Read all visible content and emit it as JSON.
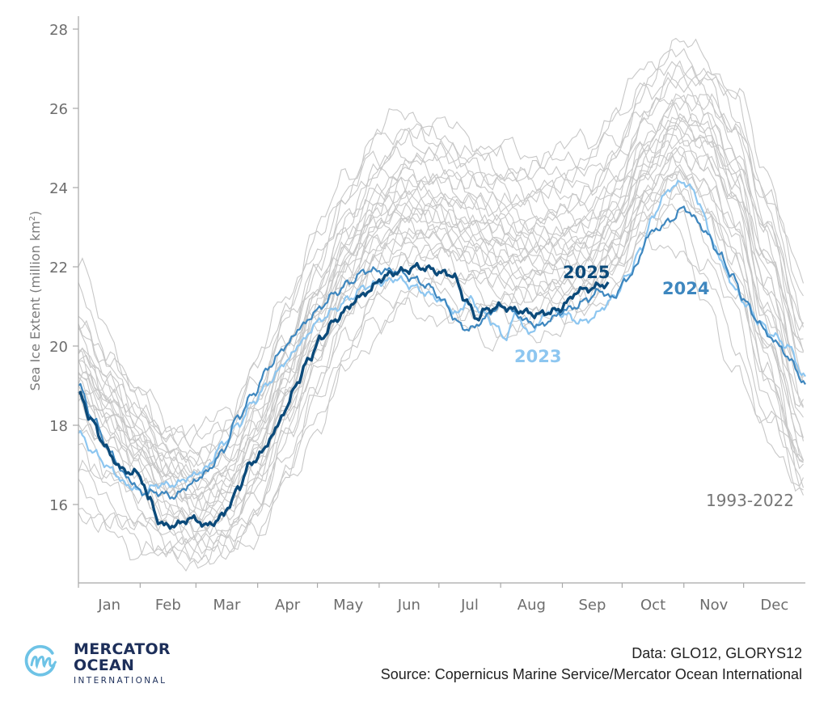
{
  "chart_data": {
    "type": "line",
    "title": "",
    "xlabel": "",
    "ylabel": "Sea Ice Extent (million km²)",
    "ylabel_main": "Sea Ice Extent (million km",
    "ylabel_sup": "2",
    "ylabel_end": ")",
    "xlim": [
      0,
      365
    ],
    "ylim": [
      14,
      28.3
    ],
    "yticks": [
      16,
      18,
      20,
      22,
      24,
      26,
      28
    ],
    "ytick_labels": [
      "16",
      "18",
      "20",
      "22",
      "24",
      "26",
      "28"
    ],
    "xtick_days": [
      0,
      31,
      59,
      90,
      120,
      151,
      181,
      212,
      243,
      273,
      304,
      334,
      365
    ],
    "month_labels": [
      "Jan",
      "Feb",
      "Mar",
      "Apr",
      "May",
      "Jun",
      "Jul",
      "Aug",
      "Sep",
      "Oct",
      "Nov",
      "Dec"
    ],
    "grid": false,
    "x_unit": "day of year",
    "background_range_label": "1993-2022",
    "background_color": "#c8c8c8",
    "background_years": 30,
    "background_x": [
      0,
      15,
      30,
      45,
      60,
      75,
      90,
      105,
      120,
      135,
      150,
      165,
      180,
      195,
      210,
      225,
      240,
      255,
      270,
      285,
      300,
      315,
      330,
      345,
      365
    ],
    "background_series": [
      [
        22.0,
        20.3,
        18.9,
        18.0,
        17.8,
        18.3,
        19.6,
        21.3,
        22.9,
        24.3,
        25.4,
        25.9,
        25.6,
        25.3,
        25.0,
        24.8,
        24.9,
        25.2,
        25.9,
        27.1,
        27.6,
        27.3,
        26.4,
        24.4,
        21.6
      ],
      [
        21.3,
        19.9,
        18.7,
        17.8,
        17.6,
        18.2,
        19.5,
        21.1,
        22.7,
        24.0,
        25.1,
        25.6,
        25.2,
        24.9,
        24.7,
        24.5,
        24.6,
        24.8,
        25.6,
        26.8,
        27.3,
        27.0,
        26.1,
        24.0,
        21.1
      ],
      [
        20.8,
        19.6,
        18.6,
        17.7,
        17.4,
        17.9,
        19.1,
        20.8,
        22.4,
        23.8,
        24.8,
        25.3,
        25.1,
        24.8,
        24.5,
        24.3,
        24.4,
        24.6,
        25.3,
        26.5,
        27.1,
        26.8,
        25.9,
        23.7,
        20.8
      ],
      [
        20.6,
        19.4,
        18.5,
        17.6,
        17.2,
        17.7,
        18.9,
        20.6,
        22.2,
        23.6,
        24.6,
        25.1,
        25.0,
        24.6,
        24.3,
        24.1,
        24.2,
        24.3,
        25.0,
        26.3,
        26.9,
        26.6,
        25.6,
        23.5,
        20.5
      ],
      [
        20.4,
        19.3,
        18.3,
        17.5,
        17.1,
        17.5,
        18.6,
        20.3,
        21.9,
        23.4,
        24.4,
        24.9,
        24.8,
        24.5,
        24.2,
        24.0,
        24.0,
        24.1,
        24.8,
        26.1,
        26.8,
        26.5,
        25.4,
        23.3,
        20.3
      ],
      [
        20.2,
        19.2,
        18.2,
        17.4,
        17.0,
        17.4,
        18.5,
        20.1,
        21.7,
        23.2,
        24.2,
        24.7,
        24.6,
        24.3,
        24.0,
        23.8,
        23.8,
        23.9,
        24.6,
        25.9,
        26.6,
        26.3,
        25.2,
        23.1,
        20.1
      ],
      [
        20.0,
        19.0,
        18.0,
        17.3,
        16.9,
        17.3,
        18.4,
        20.0,
        21.6,
        23.0,
        24.0,
        24.5,
        24.4,
        24.1,
        23.8,
        23.6,
        23.6,
        23.7,
        24.4,
        25.7,
        26.4,
        26.1,
        25.0,
        22.9,
        20.0
      ],
      [
        19.9,
        18.9,
        17.9,
        17.2,
        16.8,
        17.1,
        18.2,
        19.8,
        21.4,
        22.8,
        23.8,
        24.3,
        24.3,
        23.9,
        23.6,
        23.4,
        23.4,
        23.5,
        24.2,
        25.5,
        26.2,
        25.9,
        24.8,
        22.7,
        19.8
      ],
      [
        19.8,
        18.8,
        17.8,
        17.1,
        16.7,
        17.0,
        18.1,
        19.7,
        21.3,
        22.7,
        23.7,
        24.2,
        24.1,
        23.8,
        23.5,
        23.2,
        23.2,
        23.3,
        24.0,
        25.3,
        26.0,
        25.7,
        24.6,
        22.5,
        19.6
      ],
      [
        19.7,
        18.7,
        17.8,
        17.0,
        16.6,
        16.9,
        18.0,
        19.6,
        21.2,
        22.6,
        23.6,
        24.1,
        24.0,
        23.6,
        23.3,
        23.1,
        23.1,
        23.2,
        23.9,
        25.2,
        25.9,
        25.6,
        24.4,
        22.3,
        19.4
      ],
      [
        19.6,
        18.6,
        17.7,
        16.9,
        16.5,
        16.8,
        17.9,
        19.5,
        21.1,
        22.5,
        23.5,
        24.0,
        23.9,
        23.5,
        23.2,
        22.9,
        22.9,
        23.0,
        23.7,
        25.0,
        25.8,
        25.5,
        24.3,
        22.1,
        19.3
      ],
      [
        19.5,
        18.5,
        17.6,
        16.8,
        16.4,
        16.7,
        17.8,
        19.4,
        21.0,
        22.4,
        23.4,
        23.8,
        23.7,
        23.4,
        23.1,
        22.8,
        22.8,
        22.9,
        23.6,
        24.9,
        25.7,
        25.4,
        24.2,
        21.9,
        19.1
      ],
      [
        19.4,
        18.5,
        17.5,
        16.8,
        16.3,
        16.6,
        17.7,
        19.3,
        20.9,
        22.3,
        23.3,
        23.7,
        23.6,
        23.2,
        22.9,
        22.7,
        22.7,
        22.8,
        23.5,
        24.8,
        25.6,
        25.3,
        24.0,
        21.7,
        18.9
      ],
      [
        19.3,
        18.4,
        17.5,
        16.7,
        16.2,
        16.5,
        17.6,
        19.2,
        20.8,
        22.2,
        23.2,
        23.6,
        23.5,
        23.1,
        22.8,
        22.6,
        22.6,
        22.7,
        23.4,
        24.7,
        25.5,
        25.2,
        23.9,
        21.5,
        18.7
      ],
      [
        19.2,
        18.3,
        17.4,
        16.6,
        16.1,
        16.4,
        17.5,
        19.1,
        20.7,
        22.1,
        23.1,
        23.5,
        23.4,
        23.0,
        22.7,
        22.5,
        22.5,
        22.6,
        23.3,
        24.6,
        25.4,
        25.1,
        23.8,
        21.3,
        18.5
      ],
      [
        19.1,
        18.2,
        17.3,
        16.5,
        16.0,
        16.3,
        17.4,
        19.0,
        20.6,
        22.0,
        23.0,
        23.4,
        23.3,
        22.9,
        22.6,
        22.4,
        22.4,
        22.5,
        23.2,
        24.5,
        25.3,
        25.0,
        23.7,
        21.1,
        18.3
      ],
      [
        19.0,
        18.1,
        17.2,
        16.4,
        15.9,
        16.2,
        17.3,
        18.9,
        20.5,
        21.9,
        22.9,
        23.3,
        23.2,
        22.8,
        22.5,
        22.3,
        22.3,
        22.4,
        23.1,
        24.4,
        25.2,
        24.8,
        23.5,
        20.9,
        18.1
      ],
      [
        18.9,
        18.0,
        17.1,
        16.3,
        15.8,
        16.1,
        17.2,
        18.8,
        20.4,
        21.8,
        22.8,
        23.2,
        23.1,
        22.7,
        22.4,
        22.2,
        22.2,
        22.3,
        23.0,
        24.3,
        25.0,
        24.6,
        23.3,
        20.7,
        17.9
      ],
      [
        18.8,
        17.9,
        17.0,
        16.2,
        15.7,
        16.0,
        17.0,
        18.6,
        20.2,
        21.6,
        22.6,
        23.0,
        22.9,
        22.6,
        22.3,
        22.1,
        22.1,
        22.2,
        22.9,
        24.2,
        24.9,
        24.4,
        23.1,
        20.5,
        17.7
      ],
      [
        18.7,
        17.8,
        16.9,
        16.1,
        15.6,
        15.9,
        16.9,
        18.5,
        20.1,
        21.5,
        22.5,
        22.9,
        22.8,
        22.4,
        22.1,
        21.9,
        21.9,
        22.0,
        22.7,
        24.0,
        24.7,
        24.2,
        22.9,
        20.3,
        17.5
      ],
      [
        18.5,
        17.6,
        16.7,
        15.9,
        15.5,
        15.8,
        16.8,
        18.4,
        20.0,
        21.4,
        22.4,
        22.8,
        22.7,
        22.3,
        22.0,
        21.8,
        21.8,
        21.9,
        22.6,
        23.9,
        24.6,
        24.0,
        22.7,
        20.1,
        17.3
      ],
      [
        18.3,
        17.4,
        16.5,
        15.8,
        15.4,
        15.7,
        16.7,
        18.3,
        19.9,
        21.3,
        22.3,
        22.7,
        22.6,
        22.2,
        21.9,
        21.7,
        21.7,
        21.8,
        22.5,
        23.8,
        24.5,
        23.8,
        22.5,
        19.9,
        17.1
      ],
      [
        18.1,
        17.2,
        16.3,
        15.7,
        15.3,
        15.6,
        16.6,
        18.2,
        19.8,
        21.2,
        22.2,
        22.6,
        22.5,
        22.1,
        21.8,
        21.6,
        21.6,
        21.7,
        22.4,
        23.7,
        24.4,
        23.6,
        22.3,
        19.7,
        16.9
      ],
      [
        17.8,
        17.0,
        16.2,
        15.6,
        15.2,
        15.5,
        16.4,
        18.0,
        19.6,
        21.0,
        22.0,
        22.4,
        22.3,
        21.9,
        21.6,
        21.4,
        21.5,
        21.6,
        22.3,
        23.6,
        24.3,
        23.5,
        22.1,
        19.5,
        16.7
      ],
      [
        17.5,
        16.7,
        16.0,
        15.4,
        15.1,
        15.3,
        16.2,
        17.8,
        19.4,
        20.8,
        21.8,
        22.2,
        22.1,
        21.7,
        21.4,
        21.3,
        21.4,
        21.5,
        22.2,
        23.5,
        24.2,
        23.3,
        21.9,
        19.3,
        16.5
      ],
      [
        17.2,
        16.4,
        15.8,
        15.2,
        15.0,
        15.2,
        16.0,
        17.6,
        19.2,
        20.6,
        21.6,
        22.0,
        21.9,
        21.5,
        21.2,
        21.2,
        21.3,
        21.4,
        22.1,
        23.4,
        24.1,
        23.1,
        21.7,
        19.1,
        16.3
      ],
      [
        16.8,
        16.1,
        15.5,
        15.0,
        14.9,
        15.1,
        15.8,
        17.3,
        18.9,
        20.3,
        21.3,
        21.8,
        21.7,
        21.3,
        21.0,
        21.0,
        21.2,
        21.3,
        22.0,
        23.3,
        23.8,
        22.7,
        21.3,
        18.8,
        16.4
      ],
      [
        16.4,
        15.8,
        15.3,
        14.9,
        14.8,
        15.0,
        15.6,
        17.0,
        18.6,
        20.0,
        21.0,
        21.5,
        21.4,
        21.0,
        20.8,
        20.8,
        21.0,
        21.2,
        21.9,
        23.0,
        23.4,
        22.2,
        20.8,
        18.4,
        17.0
      ],
      [
        16.0,
        15.5,
        15.1,
        14.8,
        14.7,
        14.9,
        15.4,
        16.7,
        18.3,
        19.7,
        20.7,
        21.2,
        21.1,
        20.7,
        20.5,
        20.5,
        20.8,
        21.0,
        21.8,
        22.9,
        23.1,
        21.6,
        20.1,
        18.0,
        17.5
      ],
      [
        15.8,
        15.3,
        14.9,
        14.7,
        14.6,
        14.8,
        15.3,
        16.5,
        18.0,
        19.4,
        20.4,
        20.9,
        20.8,
        20.4,
        20.2,
        20.2,
        20.5,
        20.8,
        21.6,
        22.6,
        22.6,
        21.0,
        19.5,
        17.6,
        16.6
      ]
    ],
    "series": [
      {
        "name": "2023",
        "label": "2023",
        "color": "#8dc6f0",
        "x": [
          0,
          8,
          16,
          24,
          32,
          40,
          48,
          56,
          64,
          72,
          80,
          88,
          96,
          104,
          112,
          120,
          128,
          136,
          144,
          152,
          160,
          168,
          176,
          184,
          190,
          196,
          202,
          208,
          214,
          220,
          226,
          230,
          236,
          244,
          252,
          258,
          264,
          270,
          276,
          282,
          288,
          294,
          300,
          306,
          312,
          318,
          324,
          330,
          336,
          342,
          348,
          356,
          365
        ],
        "values": [
          17.8,
          17.3,
          16.9,
          16.5,
          16.3,
          16.5,
          16.5,
          16.7,
          16.9,
          17.5,
          18.0,
          18.6,
          19.1,
          19.6,
          20.1,
          20.6,
          20.9,
          21.2,
          21.5,
          21.6,
          21.7,
          21.5,
          21.3,
          21.1,
          20.8,
          21.2,
          20.9,
          20.6,
          20.2,
          20.8,
          20.3,
          20.5,
          20.9,
          20.8,
          20.6,
          20.7,
          21.0,
          21.3,
          21.8,
          22.4,
          23.2,
          23.8,
          24.1,
          24.1,
          23.6,
          22.7,
          22.0,
          21.4,
          21.0,
          20.6,
          20.3,
          20.0,
          19.2
        ]
      },
      {
        "name": "2024",
        "label": "2024",
        "color": "#3e87bf",
        "x": [
          0,
          8,
          16,
          24,
          32,
          40,
          48,
          56,
          64,
          72,
          80,
          88,
          96,
          104,
          112,
          120,
          128,
          136,
          144,
          152,
          160,
          168,
          176,
          184,
          190,
          196,
          202,
          208,
          214,
          220,
          226,
          232,
          238,
          244,
          250,
          256,
          262,
          268,
          274,
          280,
          286,
          292,
          298,
          304,
          310,
          316,
          322,
          328,
          334,
          340,
          346,
          352,
          358,
          365
        ],
        "values": [
          19.0,
          18.1,
          17.3,
          16.7,
          16.3,
          16.3,
          16.2,
          16.5,
          16.8,
          17.3,
          18.2,
          18.8,
          19.5,
          20.0,
          20.5,
          20.9,
          21.3,
          21.6,
          21.9,
          21.9,
          21.9,
          21.7,
          21.5,
          21.1,
          20.6,
          20.4,
          20.6,
          20.9,
          21.0,
          20.8,
          20.6,
          20.5,
          20.7,
          20.9,
          21.0,
          21.2,
          21.4,
          21.2,
          21.6,
          22.0,
          22.8,
          23.0,
          23.2,
          23.5,
          23.2,
          22.8,
          22.3,
          21.8,
          21.2,
          20.7,
          20.3,
          20.0,
          19.6,
          19.0
        ]
      },
      {
        "name": "2025",
        "label": "2025",
        "color": "#0b4a7a",
        "x": [
          0,
          6,
          12,
          18,
          24,
          28,
          32,
          36,
          40,
          44,
          50,
          56,
          60,
          64,
          68,
          72,
          76,
          80,
          86,
          92,
          98,
          104,
          110,
          116,
          122,
          128,
          134,
          140,
          146,
          152,
          158,
          164,
          170,
          176,
          182,
          188,
          194,
          200,
          204,
          212,
          220,
          230,
          241,
          245,
          251,
          257,
          263,
          266
        ],
        "values": [
          18.8,
          18.2,
          17.6,
          17.1,
          16.8,
          16.85,
          16.6,
          16.1,
          15.6,
          15.45,
          15.5,
          15.65,
          15.6,
          15.45,
          15.55,
          15.7,
          16.0,
          16.4,
          17.0,
          17.3,
          17.8,
          18.4,
          19.1,
          19.7,
          20.2,
          20.6,
          20.9,
          21.2,
          21.4,
          21.7,
          21.85,
          21.9,
          22.0,
          21.95,
          21.85,
          21.8,
          21.2,
          20.7,
          20.9,
          21.0,
          20.9,
          20.8,
          20.9,
          21.1,
          21.4,
          21.45,
          21.55,
          21.55
        ]
      }
    ]
  },
  "footer": {
    "logo_line1": "MERCATOR",
    "logo_line2": "OCEAN",
    "logo_line3": "INTERNATIONAL",
    "data_credit": "Data: GLO12, GLORYS12",
    "source_credit": "Source: Copernicus Marine Service/Mercator Ocean International"
  }
}
